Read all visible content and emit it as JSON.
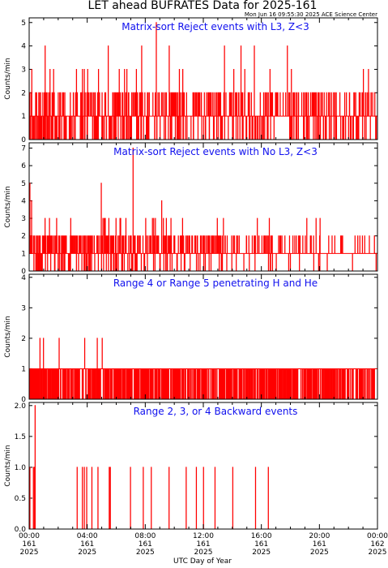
{
  "figure": {
    "title": "LET ahead BUFRATES Data for 2025-161",
    "timestamp": "Mon Jun 16 09:55:30 2025 ACE Science Center",
    "xlabel": "UTC Day of Year"
  },
  "colors": {
    "data": "#ff0000",
    "panel_title": "#1010ee",
    "axes": "#000000"
  },
  "chart_data": [
    {
      "type": "bar",
      "title": "Matrix-sort Reject events with L3, Z<3",
      "ylabel": "Counts/min",
      "ylim": [
        0,
        5.2
      ],
      "yticks": [
        "0",
        "1",
        "2",
        "3",
        "4",
        "5"
      ],
      "xlim_hours": [
        0,
        24
      ],
      "minute_counts": "1102101011213101011110111011112001221101100112202011102101101111201101120104101211102001111022110132111001102121011312211011101111001111121010102021211110111222112101012110110011111111111110110121101011111101221111011012211311121111111111111012120210132101111130002111111120103211112111111221111121101112110112012011011001120003111121111111111021110011111102111211101111111411101110011011110111212201110212102001121111220112131112210111111201200011103111112201131011112021111010011110221111121111121112121130121201000011121112200104221211110111112111111011012102101012111111111111111121111111001211115100111121111121110111111211111221111011211101212111111110111411210101211021211121121211120121222100102111011301112101111121130201122111110111121011111111111111111101111111121001222111112111211111202111121121111112101111111101121111001112111111211121001211112111111211110020111111211110221111021112211210210111100111111211401111121111111111011111211211121111120111013111111122101221111011212111101112412112012101111112311111011011111121121021101111121101110111111410101001111110101111111011121101111110111002111101211211111201110211111113110121112112111111011111121112111121211111111112111111111111121111111111121111111411111121110201111031110111221102211111120110121111002111111111111112111111102120111112121012011101211101111112111111211121021121110211112011111021011211101012111112211110011211110101102111111112111012211101012111111112101112210110201111111111111112111011111111011011011121110111211111111101112211001101111111011012112111112101111001111001211112111111112201213211110111221011112111113121111110112211111121111111112111011011111"
    },
    {
      "type": "bar",
      "title": "Matrix-sort Reject events with No L3, Z<3",
      "ylabel": "Counts/min",
      "ylim": [
        0,
        7.3
      ],
      "yticks": [
        "0",
        "1",
        "2",
        "3",
        "4",
        "5",
        "6",
        "7"
      ],
      "xlim_hours": [
        0,
        24
      ],
      "minute_counts": "5455111211141121111112011121111011220112100102210021210110011102121112112213102211111120112212113112220211212211111121210101212111312111101121102211111012011212021212020012111221111111110011110112032211121211112111211112211102212211110112121211212111011211111202202121101122011112101211012101212201112111111122101111111112122112011111211111125021211131101131111322120112212112013211111120210121211211021011111201301101111220111122231131111012002211211011121113211111110111211101121211210111100711122112021100101101221212111112221111011111112111101101111311121110112111111121222121111113211103121110231111122112121121111101011111141111112310112111120113220101112211112120121322110111111112111211111111100011112111111112112011211131111211011011112111112112111112112101111111211211111111112222121101112211011111111012112121111112112011121101112111111211121201121111101211211121112111112111112121131121221101221112110101201111311111112211111101211111111111111111111201111112111121111111102111112111111211111111111111111111101111111111122111111111121011111111111112111111112212012111111113111111221111111111111211111111212111211211111212111102113111010211121120111111111111111110111111111121111121212111112111111111111121111111111111111101112111011111111111211111111211111112111111111212101121111111111112111111111112111111311111111111111112111211111111112011111111113111111111110111120311111111111111111111111111111111101111112111111111111111211111111111121111111111111111111111111112111211112111111111111111111111111111111111111111111111101111111111121111111111112111111111211111111111211111111112111111111111111111111211111111111111111111111211111110111111"
    },
    {
      "type": "bar",
      "title": "Range 4 or Range 5 penetrating H and He",
      "ylabel": "Counts/min",
      "ylim": [
        0,
        4.1
      ],
      "yticks": [
        "0",
        "1",
        "2",
        "3",
        "4"
      ],
      "xlim_hours": [
        0,
        24
      ],
      "minute_counts": "1101101011101110011001100110111011101110111010111011210101000111101102110001001111000011111010010101110100111100101111010011011101010110110100101211111010111111110111001010101100011111011011001101111110101010101111101111101100101110101110100010011111111111101011011111121111000111111110110011011011101111101101011001110101111010112011011101110011011111112111101111101011110101010011001011011111000011110011111110111001101110111011010111011011001011111010110101101111011111011101101011100110111101001011111111101001101110110100111100010111111010011101110101101001100011011110101110111110110010001111011011111110110110101110111110111101101111110111100110110110111010101100100011001111111101111011111011101010001011101010110111011101110101111110110011101111101010111111110101110101011111011111011111101110101101011111101101010101011011111101010001100110111011001110111111000011111111011111101110011110101111101111101111111111010111100110111011011110010101111110111010101111011011101111001111110111101110101010101011111111011101101110011011111101100111110011011101011110110101111011110101001111101001001111111011010111111000100110110111011011101110111110110001111101011101101110101100010111011000101101111100011111011110100010011011110111101001011010111101101100011101110101101111101000101101100011000011011011111111111111011111101011111011101010111110100110110110011011001101111101110011010011101110100111110011111110111111000110111101111011001001110110110010111011110001110111101001101111011111011100111111001111011111011101011010011110111111111011101110111111101111111010100111111111111010101110111111101010101001010110111110101111101111111011011111011111011111100111100111101011111111111111"
    },
    {
      "type": "bar",
      "title": "Range 2, 3, or 4 Backward events",
      "ylabel": "Counts/min",
      "ylim": [
        0,
        2.05
      ],
      "yticks": [
        "0.0",
        "0.5",
        "1.0",
        "1.5",
        "2.0"
      ],
      "xlim_hours": [
        0,
        24
      ],
      "minute_counts": "00010000000000000001000010020000000000000000000000000000000000000000000000000000000000000000000000000000000000000000000000000000000000000000000000000000000000000000000000000000000000000000000000000000000000000000000000000100000000000000000000000100000000100000000001000000000000000000000001000000000000000000000000000100000000000000000000000000000000000000000000000000010000100000000000000000000000000000000000000000000000000000000000000000000000000000000000000000000100000000000000000000000000000000000000000000000000000000001000000000000000000000000000000000000100000000000000000000000000000000000000000000000000000000000000000000000000000000010000000000000000000000000000000000000000000000000000000000000000000000000000001000000000000000000000000000000000000000000000010000000000000000000000000000000010000000000000000000000000000000000000000000000000000100000000000000000000000000000000000000000000000000000000000000000000000000000000010000000000000000000000000000000000000000000000000000000000000000000000000000000000000000000000000000000010000000000000000000000000000000000000000000000000000000000100000000000000000000000000000000000000000000000000000000000000000000000000000000000000000000000000000000000000000000000000000000000000000000000000000000000000000000000000000000000000000000000000000000000000000000000000000000000000000000000000000000000000000000000000000000000000000000000000000000000000000000000000000000000000000000000000000000000000000000000000000000000000000000000000000000000000000000000000000000000000000000000000000000000000000000000000000000000000000000000000000000000000000000000"
    }
  ],
  "x_ticks": [
    {
      "time": "00:00",
      "day": "161",
      "year": "2025"
    },
    {
      "time": "04:00",
      "day": "161",
      "year": "2025"
    },
    {
      "time": "08:00",
      "day": "161",
      "year": "2025"
    },
    {
      "time": "12:00",
      "day": "161",
      "year": "2025"
    },
    {
      "time": "16:00",
      "day": "161",
      "year": "2025"
    },
    {
      "time": "20:00",
      "day": "161",
      "year": "2025"
    },
    {
      "time": "00:00",
      "day": "162",
      "year": "2025"
    }
  ]
}
